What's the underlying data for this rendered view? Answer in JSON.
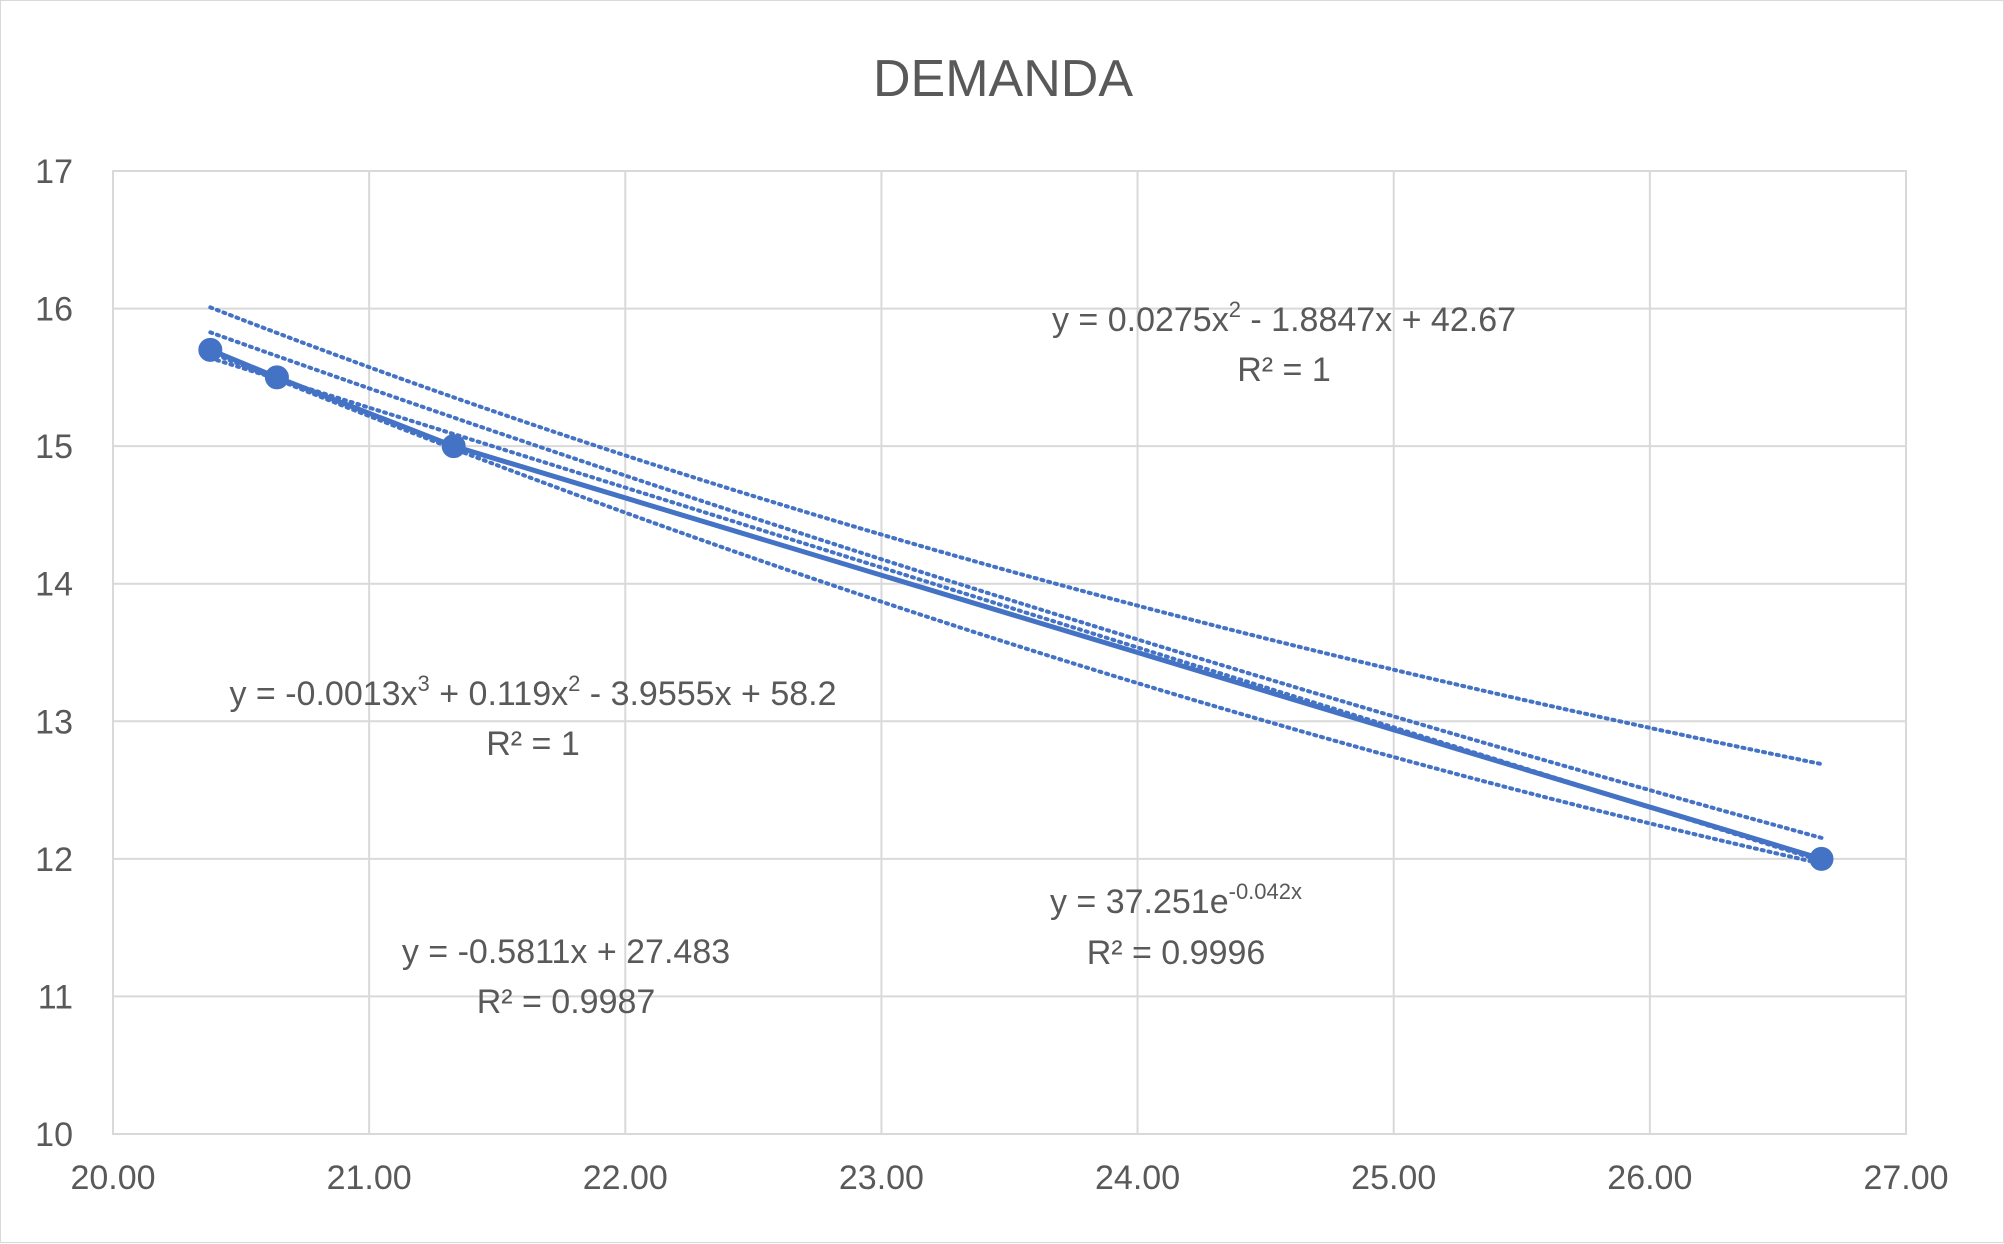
{
  "chart_data": {
    "type": "scatter",
    "title": "DEMANDA",
    "xlim": [
      20,
      27
    ],
    "ylim": [
      10,
      17
    ],
    "grid": true,
    "x_ticks": [
      "20.00",
      "21.00",
      "22.00",
      "23.00",
      "24.00",
      "25.00",
      "26.00",
      "27.00"
    ],
    "y_ticks": [
      "10",
      "11",
      "12",
      "13",
      "14",
      "15",
      "16",
      "17"
    ],
    "series": [
      {
        "color": "#4472c4",
        "points": [
          {
            "x": 20.38,
            "y": 15.7
          },
          {
            "x": 20.64,
            "y": 15.5
          },
          {
            "x": 21.33,
            "y": 15.0
          },
          {
            "x": 26.67,
            "y": 12.0
          }
        ]
      }
    ],
    "trendlines": [
      {
        "kind": "linear",
        "coefficients": [
          -0.5811,
          27.483
        ],
        "equation_parts": [
          "y = -0.5811x + 27.483"
        ],
        "r2_label": "R² = 0.9987"
      },
      {
        "kind": "exponential",
        "coefficients": [
          37.251,
          -0.042
        ],
        "equation_parts": [
          "y = 37.251e",
          "-0.042x",
          ""
        ],
        "r2_label": "R² = 0.9996"
      },
      {
        "kind": "polynomial2",
        "coefficients": [
          0.0275,
          -1.8847,
          42.67
        ],
        "equation_parts": [
          "y = 0.0275x",
          "2",
          " - 1.8847x + 42.67"
        ],
        "r2_label": "R² = 1"
      },
      {
        "kind": "polynomial3",
        "coefficients": [
          -0.0013,
          0.119,
          -3.9555,
          58.2
        ],
        "equation_parts": [
          "y = -0.0013x",
          "3",
          " + 0.119x",
          "2",
          " - 3.9555x + 58.2"
        ],
        "r2_label": "R² = 1"
      }
    ]
  }
}
